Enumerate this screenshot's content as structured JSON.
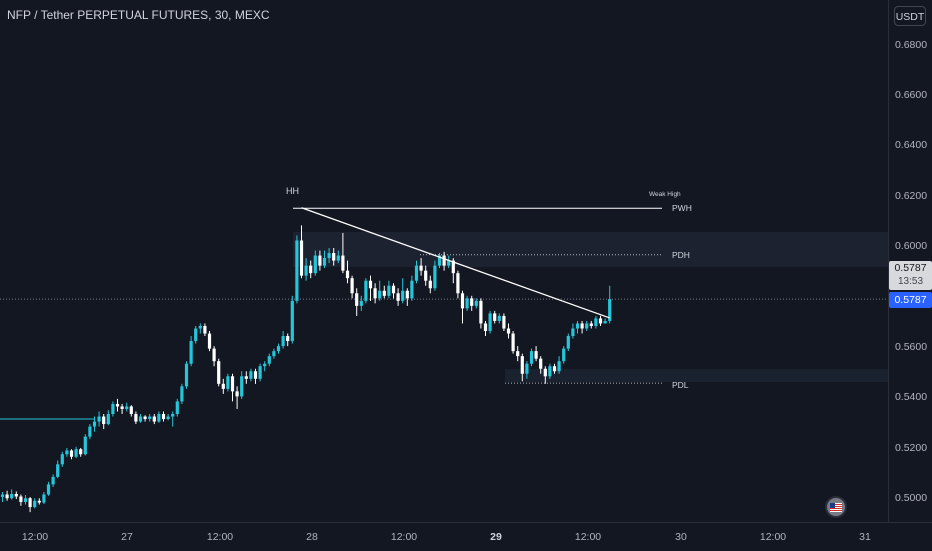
{
  "header": {
    "symbol_title": "NFP / Tether PERPETUAL FUTURES, 30, MEXC"
  },
  "price_axis": {
    "currency_label": "USDT",
    "ticks": [
      "0.6800",
      "0.6600",
      "0.6400",
      "0.6200",
      "0.6000",
      "0.5600",
      "0.5400",
      "0.5200",
      "0.5000"
    ],
    "last_price": "0.5787",
    "countdown": "13:53",
    "crosshair_price": "0.5787"
  },
  "time_axis": {
    "ticks": [
      {
        "label": "12:00",
        "bold": false
      },
      {
        "label": "27",
        "bold": false
      },
      {
        "label": "12:00",
        "bold": false
      },
      {
        "label": "28",
        "bold": false
      },
      {
        "label": "12:00",
        "bold": false
      },
      {
        "label": "29",
        "bold": true
      },
      {
        "label": "12:00",
        "bold": false
      },
      {
        "label": "30",
        "bold": false
      },
      {
        "label": "12:00",
        "bold": false
      },
      {
        "label": "31",
        "bold": false
      }
    ]
  },
  "annotations": {
    "hh": "HH",
    "weak_high": "Weak High",
    "pwh": "PWH",
    "pdh": "PDH",
    "pdl": "PDL"
  },
  "colors": {
    "up": "#26c6da",
    "down": "#ffffff",
    "background": "#131722",
    "accent": "#2962ff"
  },
  "icons": {
    "flag": "us-flag-icon"
  },
  "chart_data": {
    "type": "candlestick",
    "timeframe": "30",
    "ylim": [
      0.496,
      0.682
    ],
    "levels": {
      "PWH": 0.6148,
      "PDH": 0.5963,
      "PDL": 0.5453,
      "previous_low": 0.531
    },
    "trendline": {
      "start": [
        65,
        0.615
      ],
      "end": [
        132,
        0.5712
      ]
    },
    "candles": [
      [
        0.5,
        0.501,
        0.498,
        0.502
      ],
      [
        0.501,
        0.4995,
        0.4985,
        0.5025
      ],
      [
        0.4995,
        0.5012,
        0.499,
        0.503
      ],
      [
        0.5012,
        0.5002,
        0.4992,
        0.5022
      ],
      [
        0.5002,
        0.498,
        0.4965,
        0.501
      ],
      [
        0.498,
        0.4995,
        0.497,
        0.5008
      ],
      [
        0.4995,
        0.496,
        0.494,
        0.5
      ],
      [
        0.496,
        0.4985,
        0.4955,
        0.4995
      ],
      [
        0.4985,
        0.4978,
        0.497,
        0.4995
      ],
      [
        0.4978,
        0.501,
        0.4972,
        0.502
      ],
      [
        0.501,
        0.505,
        0.5005,
        0.506
      ],
      [
        0.505,
        0.508,
        0.504,
        0.509
      ],
      [
        0.508,
        0.513,
        0.5075,
        0.5145
      ],
      [
        0.513,
        0.517,
        0.512,
        0.518
      ],
      [
        0.517,
        0.5185,
        0.516,
        0.5195
      ],
      [
        0.5185,
        0.516,
        0.515,
        0.519
      ],
      [
        0.516,
        0.519,
        0.5155,
        0.52
      ],
      [
        0.519,
        0.517,
        0.516,
        0.5195
      ],
      [
        0.517,
        0.524,
        0.5165,
        0.525
      ],
      [
        0.524,
        0.528,
        0.523,
        0.529
      ],
      [
        0.528,
        0.53,
        0.526,
        0.532
      ],
      [
        0.53,
        0.532,
        0.528,
        0.534
      ],
      [
        0.532,
        0.529,
        0.527,
        0.533
      ],
      [
        0.529,
        0.533,
        0.5285,
        0.5345
      ],
      [
        0.533,
        0.537,
        0.532,
        0.538
      ],
      [
        0.537,
        0.536,
        0.534,
        0.539
      ],
      [
        0.536,
        0.535,
        0.533,
        0.537
      ],
      [
        0.535,
        0.536,
        0.534,
        0.5375
      ],
      [
        0.536,
        0.533,
        0.532,
        0.5365
      ],
      [
        0.533,
        0.53,
        0.529,
        0.534
      ],
      [
        0.53,
        0.532,
        0.5295,
        0.533
      ],
      [
        0.532,
        0.531,
        0.53,
        0.5325
      ],
      [
        0.531,
        0.532,
        0.53,
        0.533
      ],
      [
        0.532,
        0.53,
        0.529,
        0.533
      ],
      [
        0.53,
        0.533,
        0.5295,
        0.534
      ],
      [
        0.533,
        0.531,
        0.53,
        0.534
      ],
      [
        0.531,
        0.532,
        0.5305,
        0.533
      ],
      [
        0.532,
        0.533,
        0.528,
        0.534
      ],
      [
        0.533,
        0.538,
        0.532,
        0.539
      ],
      [
        0.538,
        0.544,
        0.537,
        0.545
      ],
      [
        0.544,
        0.553,
        0.543,
        0.554
      ],
      [
        0.553,
        0.562,
        0.552,
        0.564
      ],
      [
        0.562,
        0.567,
        0.561,
        0.568
      ],
      [
        0.567,
        0.568,
        0.565,
        0.569
      ],
      [
        0.568,
        0.565,
        0.564,
        0.569
      ],
      [
        0.565,
        0.559,
        0.558,
        0.566
      ],
      [
        0.559,
        0.554,
        0.552,
        0.56
      ],
      [
        0.554,
        0.545,
        0.544,
        0.555
      ],
      [
        0.545,
        0.543,
        0.541,
        0.547
      ],
      [
        0.543,
        0.548,
        0.542,
        0.549
      ],
      [
        0.548,
        0.542,
        0.538,
        0.549
      ],
      [
        0.542,
        0.54,
        0.535,
        0.544
      ],
      [
        0.54,
        0.548,
        0.539,
        0.55
      ],
      [
        0.548,
        0.547,
        0.545,
        0.55
      ],
      [
        0.547,
        0.55,
        0.546,
        0.551
      ],
      [
        0.55,
        0.547,
        0.545,
        0.551
      ],
      [
        0.547,
        0.552,
        0.546,
        0.553
      ],
      [
        0.552,
        0.553,
        0.55,
        0.554
      ],
      [
        0.553,
        0.556,
        0.552,
        0.557
      ],
      [
        0.556,
        0.558,
        0.555,
        0.559
      ],
      [
        0.558,
        0.56,
        0.557,
        0.561
      ],
      [
        0.56,
        0.564,
        0.559,
        0.566
      ],
      [
        0.564,
        0.562,
        0.56,
        0.565
      ],
      [
        0.562,
        0.578,
        0.561,
        0.58
      ],
      [
        0.578,
        0.602,
        0.577,
        0.604
      ],
      [
        0.602,
        0.588,
        0.587,
        0.608
      ],
      [
        0.588,
        0.592,
        0.586,
        0.595
      ],
      [
        0.592,
        0.589,
        0.587,
        0.594
      ],
      [
        0.589,
        0.596,
        0.588,
        0.598
      ],
      [
        0.596,
        0.592,
        0.59,
        0.598
      ],
      [
        0.592,
        0.595,
        0.591,
        0.598
      ],
      [
        0.595,
        0.597,
        0.593,
        0.599
      ],
      [
        0.597,
        0.594,
        0.592,
        0.599
      ],
      [
        0.594,
        0.596,
        0.593,
        0.598
      ],
      [
        0.596,
        0.59,
        0.589,
        0.605
      ],
      [
        0.59,
        0.587,
        0.585,
        0.594
      ],
      [
        0.587,
        0.581,
        0.579,
        0.588
      ],
      [
        0.581,
        0.576,
        0.572,
        0.583
      ],
      [
        0.576,
        0.578,
        0.574,
        0.58
      ],
      [
        0.578,
        0.586,
        0.577,
        0.587
      ],
      [
        0.586,
        0.583,
        0.578,
        0.588
      ],
      [
        0.583,
        0.579,
        0.577,
        0.585
      ],
      [
        0.579,
        0.582,
        0.578,
        0.586
      ],
      [
        0.582,
        0.58,
        0.579,
        0.584
      ],
      [
        0.58,
        0.584,
        0.579,
        0.586
      ],
      [
        0.584,
        0.581,
        0.579,
        0.585
      ],
      [
        0.581,
        0.578,
        0.576,
        0.583
      ],
      [
        0.578,
        0.582,
        0.577,
        0.587
      ],
      [
        0.582,
        0.579,
        0.576,
        0.583
      ],
      [
        0.579,
        0.586,
        0.578,
        0.588
      ],
      [
        0.586,
        0.592,
        0.585,
        0.594
      ],
      [
        0.592,
        0.59,
        0.588,
        0.595
      ],
      [
        0.59,
        0.586,
        0.584,
        0.592
      ],
      [
        0.586,
        0.583,
        0.581,
        0.588
      ],
      [
        0.583,
        0.592,
        0.582,
        0.594
      ],
      [
        0.592,
        0.596,
        0.591,
        0.597
      ],
      [
        0.596,
        0.592,
        0.59,
        0.5975
      ],
      [
        0.592,
        0.594,
        0.591,
        0.596
      ],
      [
        0.594,
        0.589,
        0.585,
        0.595
      ],
      [
        0.589,
        0.581,
        0.579,
        0.59
      ],
      [
        0.581,
        0.575,
        0.569,
        0.582
      ],
      [
        0.575,
        0.579,
        0.574,
        0.58
      ],
      [
        0.579,
        0.576,
        0.574,
        0.58
      ],
      [
        0.576,
        0.578,
        0.575,
        0.579
      ],
      [
        0.578,
        0.569,
        0.567,
        0.579
      ],
      [
        0.569,
        0.566,
        0.564,
        0.57
      ],
      [
        0.566,
        0.573,
        0.565,
        0.574
      ],
      [
        0.573,
        0.57,
        0.569,
        0.574
      ],
      [
        0.57,
        0.572,
        0.569,
        0.573
      ],
      [
        0.572,
        0.567,
        0.566,
        0.573
      ],
      [
        0.567,
        0.565,
        0.563,
        0.569
      ],
      [
        0.565,
        0.558,
        0.557,
        0.566
      ],
      [
        0.558,
        0.556,
        0.554,
        0.56
      ],
      [
        0.556,
        0.549,
        0.546,
        0.557
      ],
      [
        0.549,
        0.553,
        0.547,
        0.554
      ],
      [
        0.553,
        0.558,
        0.552,
        0.559
      ],
      [
        0.558,
        0.555,
        0.554,
        0.56
      ],
      [
        0.555,
        0.551,
        0.549,
        0.556
      ],
      [
        0.551,
        0.548,
        0.545,
        0.552
      ],
      [
        0.548,
        0.552,
        0.547,
        0.553
      ],
      [
        0.552,
        0.55,
        0.549,
        0.553
      ],
      [
        0.55,
        0.554,
        0.549,
        0.556
      ],
      [
        0.554,
        0.559,
        0.553,
        0.56
      ],
      [
        0.559,
        0.564,
        0.558,
        0.565
      ],
      [
        0.564,
        0.567,
        0.563,
        0.569
      ],
      [
        0.567,
        0.569,
        0.565,
        0.57
      ],
      [
        0.569,
        0.567,
        0.565,
        0.57
      ],
      [
        0.567,
        0.569,
        0.566,
        0.57
      ],
      [
        0.569,
        0.568,
        0.567,
        0.57
      ],
      [
        0.568,
        0.571,
        0.567,
        0.572
      ],
      [
        0.571,
        0.569,
        0.568,
        0.572
      ],
      [
        0.569,
        0.57,
        0.569,
        0.571
      ],
      [
        0.57,
        0.5787,
        0.569,
        0.584
      ]
    ]
  }
}
